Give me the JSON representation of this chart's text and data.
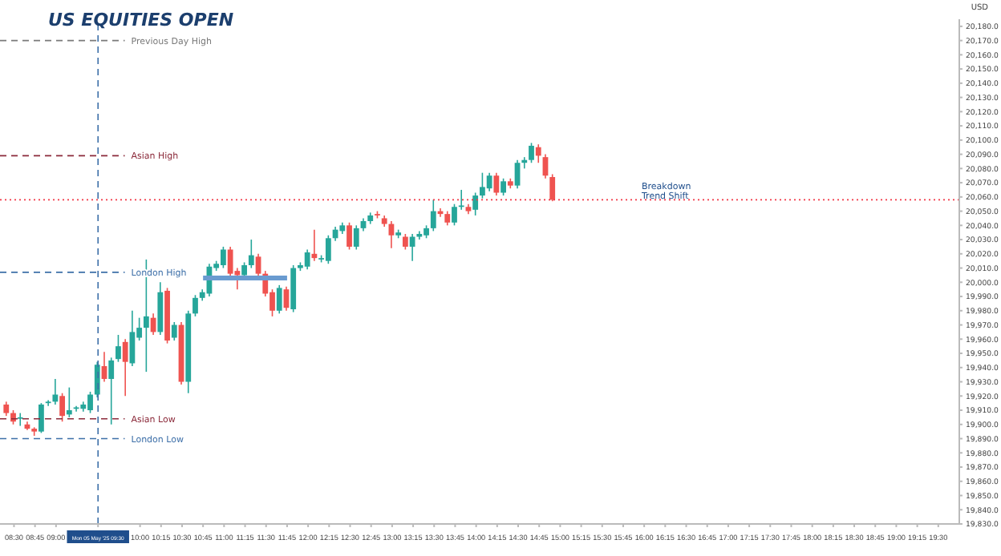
{
  "chart_data": {
    "type": "candlestick",
    "title": "US EQUITIES OPEN",
    "ylabel": "USD",
    "x": [
      "2025-05-05T08:25",
      "2025-05-05T08:30",
      "2025-05-05T08:35",
      "2025-05-05T08:40",
      "2025-05-05T08:45",
      "2025-05-05T08:50",
      "2025-05-05T08:55",
      "2025-05-05T09:00",
      "2025-05-05T09:05",
      "2025-05-05T09:10",
      "2025-05-05T09:15",
      "2025-05-05T09:20",
      "2025-05-05T09:25",
      "2025-05-05T09:30",
      "2025-05-05T09:35",
      "2025-05-05T09:40",
      "2025-05-05T09:45",
      "2025-05-05T09:50",
      "2025-05-05T09:55",
      "2025-05-05T10:00",
      "2025-05-05T10:05",
      "2025-05-05T10:10",
      "2025-05-05T10:15",
      "2025-05-05T10:20",
      "2025-05-05T10:25",
      "2025-05-05T10:30",
      "2025-05-05T10:35",
      "2025-05-05T10:40",
      "2025-05-05T10:45",
      "2025-05-05T10:50",
      "2025-05-05T10:55",
      "2025-05-05T11:00",
      "2025-05-05T11:05",
      "2025-05-05T11:10",
      "2025-05-05T11:15",
      "2025-05-05T11:20",
      "2025-05-05T11:25",
      "2025-05-05T11:30",
      "2025-05-05T11:35",
      "2025-05-05T11:40",
      "2025-05-05T11:45",
      "2025-05-05T11:50",
      "2025-05-05T11:55",
      "2025-05-05T12:00",
      "2025-05-05T12:05",
      "2025-05-05T12:10",
      "2025-05-05T12:15",
      "2025-05-05T12:20",
      "2025-05-05T12:25",
      "2025-05-05T12:30",
      "2025-05-05T12:35",
      "2025-05-05T12:40",
      "2025-05-05T12:45",
      "2025-05-05T12:50",
      "2025-05-05T12:55",
      "2025-05-05T13:00",
      "2025-05-05T13:05",
      "2025-05-05T13:10",
      "2025-05-05T13:15",
      "2025-05-05T13:20",
      "2025-05-05T13:25",
      "2025-05-05T13:30",
      "2025-05-05T13:35",
      "2025-05-05T13:40",
      "2025-05-05T13:45",
      "2025-05-05T13:50",
      "2025-05-05T13:55",
      "2025-05-05T14:00",
      "2025-05-05T14:05",
      "2025-05-05T14:10",
      "2025-05-05T14:15",
      "2025-05-05T14:20",
      "2025-05-05T14:25",
      "2025-05-05T14:30",
      "2025-05-05T14:35",
      "2025-05-05T14:40",
      "2025-05-05T14:45",
      "2025-05-05T14:50",
      "2025-05-05T14:55"
    ],
    "ohlc": [
      [
        19914,
        19916,
        19906,
        19908
      ],
      [
        19908,
        19910,
        19900,
        19902
      ],
      [
        19904,
        19908,
        19899,
        19905
      ],
      [
        19900,
        19902,
        19896,
        19897
      ],
      [
        19897,
        19898,
        19892,
        19895
      ],
      [
        19895,
        19915,
        19894,
        19914
      ],
      [
        19915,
        19917,
        19913,
        19916
      ],
      [
        19916,
        19932,
        19914,
        19921
      ],
      [
        19920,
        19922,
        19902,
        19906
      ],
      [
        19907,
        19926,
        19905,
        19910
      ],
      [
        19911,
        19913,
        19909,
        19912
      ],
      [
        19911,
        19916,
        19909,
        19914
      ],
      [
        19910,
        19923,
        19908,
        19921
      ],
      [
        19921,
        19944,
        19919,
        19942
      ],
      [
        19941,
        19951,
        19930,
        19932
      ],
      [
        19932,
        19947,
        19900,
        19945
      ],
      [
        19946,
        19963,
        19944,
        19955
      ],
      [
        19958,
        19960,
        19920,
        19944
      ],
      [
        19943,
        19980,
        19941,
        19965
      ],
      [
        19961,
        19975,
        19959,
        19968
      ],
      [
        19968,
        20016,
        19937,
        19976
      ],
      [
        19975,
        19978,
        19963,
        19965
      ],
      [
        19965,
        20000,
        19963,
        19993
      ],
      [
        19994,
        19996,
        19957,
        19959
      ],
      [
        19961,
        19972,
        19959,
        19970
      ],
      [
        19970,
        19972,
        19928,
        19930
      ],
      [
        19930,
        19980,
        19922,
        19978
      ],
      [
        19978,
        19991,
        19976,
        19989
      ],
      [
        19989,
        19995,
        19987,
        19993
      ],
      [
        19992,
        20013,
        19990,
        20011
      ],
      [
        20010,
        20015,
        20008,
        20013
      ],
      [
        20012,
        20025,
        20010,
        20023
      ],
      [
        20023,
        20025,
        20004,
        20006
      ],
      [
        20008,
        20010,
        19995,
        20005
      ],
      [
        20005,
        20014,
        20003,
        20012
      ],
      [
        20012,
        20030,
        20010,
        20019
      ],
      [
        20018,
        20020,
        20004,
        20006
      ],
      [
        20006,
        20008,
        19990,
        19992
      ],
      [
        19993,
        19995,
        19976,
        19980
      ],
      [
        19980,
        19998,
        19978,
        19996
      ],
      [
        19995,
        19997,
        19980,
        19982
      ],
      [
        19981,
        20012,
        19979,
        20010
      ],
      [
        20010,
        20014,
        20008,
        20012
      ],
      [
        20011,
        20023,
        20009,
        20021
      ],
      [
        20020,
        20037,
        20015,
        20017
      ],
      [
        20016,
        20019,
        20014,
        20017
      ],
      [
        20015,
        20033,
        20013,
        20031
      ],
      [
        20031,
        20039,
        20029,
        20037
      ],
      [
        20036,
        20042,
        20034,
        20040
      ],
      [
        20040,
        20042,
        20023,
        20025
      ],
      [
        20025,
        20040,
        20023,
        20038
      ],
      [
        20038,
        20045,
        20036,
        20043
      ],
      [
        20043,
        20049,
        20041,
        20047
      ],
      [
        20048,
        20050,
        20045,
        20047
      ],
      [
        20045,
        20047,
        20039,
        20041
      ],
      [
        20041,
        20043,
        20024,
        20033
      ],
      [
        20033,
        20037,
        20031,
        20035
      ],
      [
        20032,
        20034,
        20023,
        20025
      ],
      [
        20025,
        20034,
        20015,
        20032
      ],
      [
        20032,
        20036,
        20030,
        20034
      ],
      [
        20033,
        20040,
        20031,
        20038
      ],
      [
        20038,
        20058,
        20036,
        20050
      ],
      [
        20050,
        20052,
        20046,
        20048
      ],
      [
        20048,
        20050,
        20040,
        20042
      ],
      [
        20042,
        20055,
        20040,
        20053
      ],
      [
        20053,
        20065,
        20051,
        20054
      ],
      [
        20053,
        20055,
        20048,
        20050
      ],
      [
        20051,
        20063,
        20047,
        20061
      ],
      [
        20061,
        20077,
        20059,
        20067
      ],
      [
        20066,
        20077,
        20064,
        20075
      ],
      [
        20075,
        20077,
        20061,
        20063
      ],
      [
        20063,
        20073,
        20061,
        20071
      ],
      [
        20071,
        20073,
        20066,
        20068
      ],
      [
        20068,
        20086,
        20066,
        20084
      ],
      [
        20084,
        20088,
        20080,
        20086
      ],
      [
        20086,
        20098,
        20084,
        20096
      ],
      [
        20095,
        20097,
        20084,
        20089
      ],
      [
        20088,
        20090,
        20073,
        20075
      ],
      [
        20074,
        20076,
        20057,
        20058
      ]
    ],
    "colors": [
      "#ef5350",
      "#ef5350",
      "#26a69a",
      "#ef5350",
      "#ef5350",
      "#26a69a",
      "#26a69a",
      "#26a69a",
      "#ef5350",
      "#26a69a",
      "#26a69a",
      "#26a69a",
      "#26a69a",
      "#26a69a",
      "#ef5350",
      "#26a69a",
      "#26a69a",
      "#ef5350",
      "#26a69a",
      "#26a69a",
      "#26a69a",
      "#ef5350",
      "#26a69a",
      "#ef5350",
      "#26a69a",
      "#ef5350",
      "#26a69a",
      "#26a69a",
      "#26a69a",
      "#26a69a",
      "#26a69a",
      "#26a69a",
      "#ef5350",
      "#ef5350",
      "#26a69a",
      "#26a69a",
      "#ef5350",
      "#ef5350",
      "#ef5350",
      "#26a69a",
      "#ef5350",
      "#26a69a",
      "#26a69a",
      "#26a69a",
      "#ef5350",
      "#26a69a",
      "#26a69a",
      "#26a69a",
      "#26a69a",
      "#ef5350",
      "#26a69a",
      "#26a69a",
      "#26a69a",
      "#ef5350",
      "#ef5350",
      "#ef5350",
      "#26a69a",
      "#ef5350",
      "#26a69a",
      "#26a69a",
      "#26a69a",
      "#26a69a",
      "#ef5350",
      "#ef5350",
      "#26a69a",
      "#26a69a",
      "#ef5350",
      "#26a69a",
      "#26a69a",
      "#26a69a",
      "#ef5350",
      "#26a69a",
      "#ef5350",
      "#26a69a",
      "#26a69a",
      "#26a69a",
      "#ef5350",
      "#ef5350",
      "#ef5350"
    ],
    "series": [
      {
        "type": "line",
        "color": "#6a9bd0",
        "x": [
          "2025-05-05T10:45",
          "2025-05-05T11:45"
        ],
        "values": [
          20003,
          20003
        ]
      }
    ],
    "xlim": [
      "2025-05-05T08:20",
      "2025-05-05T19:45"
    ],
    "xticks": [
      {
        "value": "2025-05-05T08:30",
        "label": "08:30"
      },
      {
        "value": "2025-05-05T08:45",
        "label": "08:45"
      },
      {
        "value": "2025-05-05T09:00",
        "label": "09:00"
      },
      {
        "value": "2025-05-05T09:30",
        "label": "Mon 05 May '25  09:30"
      },
      {
        "value": "2025-05-05T10:00",
        "label": "10:00"
      },
      {
        "value": "2025-05-05T10:15",
        "label": "10:15"
      },
      {
        "value": "2025-05-05T10:30",
        "label": "10:30"
      },
      {
        "value": "2025-05-05T10:45",
        "label": "10:45"
      },
      {
        "value": "2025-05-05T11:00",
        "label": "11:00"
      },
      {
        "value": "2025-05-05T11:15",
        "label": "11:15"
      },
      {
        "value": "2025-05-05T11:30",
        "label": "11:30"
      },
      {
        "value": "2025-05-05T11:45",
        "label": "11:45"
      },
      {
        "value": "2025-05-05T12:00",
        "label": "12:00"
      },
      {
        "value": "2025-05-05T12:15",
        "label": "12:15"
      },
      {
        "value": "2025-05-05T12:30",
        "label": "12:30"
      },
      {
        "value": "2025-05-05T12:45",
        "label": "12:45"
      },
      {
        "value": "2025-05-05T13:00",
        "label": "13:00"
      },
      {
        "value": "2025-05-05T13:15",
        "label": "13:15"
      },
      {
        "value": "2025-05-05T13:30",
        "label": "13:30"
      },
      {
        "value": "2025-05-05T13:45",
        "label": "13:45"
      },
      {
        "value": "2025-05-05T14:00",
        "label": "14:00"
      },
      {
        "value": "2025-05-05T14:15",
        "label": "14:15"
      },
      {
        "value": "2025-05-05T14:30",
        "label": "14:30"
      },
      {
        "value": "2025-05-05T14:45",
        "label": "14:45"
      },
      {
        "value": "2025-05-05T15:00",
        "label": "15:00"
      },
      {
        "value": "2025-05-05T15:15",
        "label": "15:15"
      },
      {
        "value": "2025-05-05T15:30",
        "label": "15:30"
      },
      {
        "value": "2025-05-05T15:45",
        "label": "15:45"
      },
      {
        "value": "2025-05-05T16:00",
        "label": "16:00"
      },
      {
        "value": "2025-05-05T16:15",
        "label": "16:15"
      },
      {
        "value": "2025-05-05T16:30",
        "label": "16:30"
      },
      {
        "value": "2025-05-05T16:45",
        "label": "16:45"
      },
      {
        "value": "2025-05-05T17:00",
        "label": "17:00"
      },
      {
        "value": "2025-05-05T17:15",
        "label": "17:15"
      },
      {
        "value": "2025-05-05T17:30",
        "label": "17:30"
      },
      {
        "value": "2025-05-05T17:45",
        "label": "17:45"
      },
      {
        "value": "2025-05-05T18:00",
        "label": "18:00"
      },
      {
        "value": "2025-05-05T18:15",
        "label": "18:15"
      },
      {
        "value": "2025-05-05T18:30",
        "label": "18:30"
      },
      {
        "value": "2025-05-05T18:45",
        "label": "18:45"
      },
      {
        "value": "2025-05-05T19:00",
        "label": "19:00"
      },
      {
        "value": "2025-05-05T19:15",
        "label": "19:15"
      },
      {
        "value": "2025-05-05T19:30",
        "label": "19:30"
      }
    ],
    "ylim": [
      19830,
      20185
    ],
    "yticks": [
      {
        "value": 19830,
        "label": "19,830.0"
      },
      {
        "value": 19840,
        "label": "19,840.0"
      },
      {
        "value": 19850,
        "label": "19,850.0"
      },
      {
        "value": 19860,
        "label": "19,860.0"
      },
      {
        "value": 19870,
        "label": "19,870.0"
      },
      {
        "value": 19880,
        "label": "19,880.0"
      },
      {
        "value": 19890,
        "label": "19,890.0"
      },
      {
        "value": 19900,
        "label": "19,900.0"
      },
      {
        "value": 19910,
        "label": "19,910.0"
      },
      {
        "value": 19920,
        "label": "19,920.0"
      },
      {
        "value": 19930,
        "label": "19,930.0"
      },
      {
        "value": 19940,
        "label": "19,940.0"
      },
      {
        "value": 19950,
        "label": "19,950.0"
      },
      {
        "value": 19960,
        "label": "19,960.0"
      },
      {
        "value": 19970,
        "label": "19,970.0"
      },
      {
        "value": 19980,
        "label": "19,980.0"
      },
      {
        "value": 19990,
        "label": "19,990.0"
      },
      {
        "value": 20000,
        "label": "20,000.0"
      },
      {
        "value": 20010,
        "label": "20,010.0"
      },
      {
        "value": 20020,
        "label": "20,020.0"
      },
      {
        "value": 20030,
        "label": "20,030.0"
      },
      {
        "value": 20040,
        "label": "20,040.0"
      },
      {
        "value": 20050,
        "label": "20,050.0"
      },
      {
        "value": 20060,
        "label": "20,060.0"
      },
      {
        "value": 20070,
        "label": "20,070.0"
      },
      {
        "value": 20080,
        "label": "20,080.0"
      },
      {
        "value": 20090,
        "label": "20,090.0"
      },
      {
        "value": 20100,
        "label": "20,100.0"
      },
      {
        "value": 20110,
        "label": "20,110.0"
      },
      {
        "value": 20120,
        "label": "20,120.0"
      },
      {
        "value": 20130,
        "label": "20,130.0"
      },
      {
        "value": 20140,
        "label": "20,140.0"
      },
      {
        "value": 20150,
        "label": "20,150.0"
      },
      {
        "value": 20160,
        "label": "20,160.0"
      },
      {
        "value": 20170,
        "label": "20,170.0"
      },
      {
        "value": 20180,
        "label": "20,180.0"
      }
    ],
    "ref_lines": [
      {
        "axis": "y",
        "value": 20170,
        "label": "Previous Day High",
        "color": "#7a7a7a",
        "line_style": "dashed"
      },
      {
        "axis": "y",
        "value": 20089,
        "label": "Asian High",
        "color": "#8b2a3a",
        "line_style": "dashed"
      },
      {
        "axis": "y",
        "value": 20007,
        "label": "London High",
        "color": "#3d6fa8",
        "line_style": "dashed"
      },
      {
        "axis": "y",
        "value": 19904,
        "label": "Asian Low",
        "color": "#8b2a3a",
        "line_style": "dashed"
      },
      {
        "axis": "y",
        "value": 19890,
        "label": "London Low",
        "color": "#3d6fa8",
        "line_style": "dashed"
      },
      {
        "axis": "y",
        "value": 20058,
        "color": "#f23645",
        "line_style": "dotted"
      },
      {
        "axis": "x",
        "value": "2025-05-05T09:30",
        "color": "#3d6fa8",
        "line_style": "dashed"
      }
    ],
    "annotations": [
      "Breakdown",
      "Trend Shift"
    ]
  }
}
